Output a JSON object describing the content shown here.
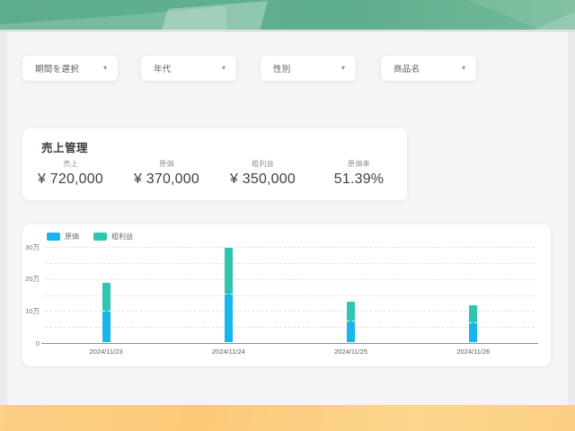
{
  "theme": {
    "header_green": "#5fae8d",
    "header_light_green": "#9ed3b8",
    "footer_orange": "#fbcc7e",
    "page_background": "#f5f5f8",
    "card_background": "#ffffff",
    "bar_blue": "#18b6ec",
    "bar_teal": "#30c5b0"
  },
  "filters": [
    {
      "label": "期間を選択"
    },
    {
      "label": "年代"
    },
    {
      "label": "性別"
    },
    {
      "label": "商品名"
    }
  ],
  "sales_card": {
    "title": "売上管理",
    "metrics": [
      {
        "label": "売上",
        "value": "¥ 720,000"
      },
      {
        "label": "原価",
        "value": "¥ 370,000"
      },
      {
        "label": "粗利益",
        "value": "¥ 350,000"
      },
      {
        "label": "原価率",
        "value": "51.39%"
      }
    ]
  },
  "chart_data": {
    "type": "bar",
    "stacked": true,
    "title": "",
    "xlabel": "",
    "ylabel": "",
    "categories": [
      "2024/11/23",
      "2024/11/24",
      "2024/11/25",
      "2024/11/26"
    ],
    "series": [
      {
        "name": "原価",
        "color": "#18b6ec",
        "values": [
          95000,
          150000,
          65000,
          60000
        ]
      },
      {
        "name": "粗利益",
        "color": "#30c5b0",
        "values": [
          90000,
          145000,
          60000,
          55000
        ]
      }
    ],
    "ylim": [
      0,
      300000
    ],
    "ytick_step": 50000,
    "ytick_labels": {
      "0": "0",
      "100000": "10万",
      "200000": "20万",
      "300000": "30万"
    },
    "legend_position": "top-left",
    "grid": "horizontal-dashed"
  }
}
